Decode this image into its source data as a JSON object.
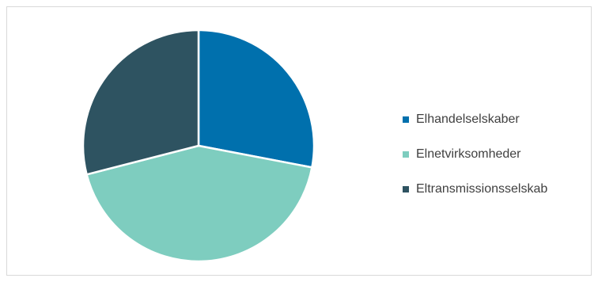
{
  "chart_data": {
    "type": "pie",
    "title": "",
    "legend_position": "right",
    "slices": [
      {
        "label": "Elhandelselskaber",
        "value": 28,
        "color": "#0070AD"
      },
      {
        "label": "Elnetvirksomheder",
        "value": 43,
        "color": "#7ECDBF"
      },
      {
        "label": "Eltransmissionsselskab",
        "value": 29,
        "color": "#2E5361"
      }
    ]
  }
}
